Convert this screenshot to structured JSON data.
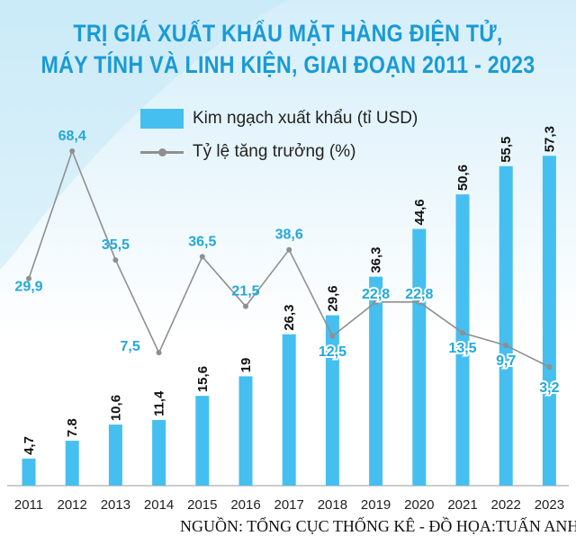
{
  "chart_data": {
    "type": "bar",
    "title_line1": "TRỊ GIÁ XUẤT KHẨU MẶT HÀNG ĐIỆN TỬ,",
    "title_line2": "MÁY TÍNH VÀ LINH KIỆN, GIAI ĐOẠN 2011 - 2023",
    "categories": [
      "2011",
      "2012",
      "2013",
      "2014",
      "2015",
      "2016",
      "2017",
      "2018",
      "2019",
      "2020",
      "2021",
      "2022",
      "2023"
    ],
    "series": [
      {
        "name": "Kim ngạch xuất khẩu (tỉ USD)",
        "kind": "bar",
        "values": [
          4.7,
          7.8,
          10.6,
          11.4,
          15.6,
          19,
          26.3,
          29.6,
          36.3,
          44.6,
          50.6,
          55.5,
          57.3
        ],
        "labels": [
          "4,7",
          "7.8",
          "10,6",
          "11,4",
          "15,6",
          "19",
          "26,3",
          "29,6",
          "36,3",
          "44,6",
          "50,6",
          "55,5",
          "57,3"
        ]
      },
      {
        "name": "Tỷ lệ tăng trưởng (%)",
        "kind": "line",
        "values": [
          29.9,
          68.4,
          35.5,
          7.5,
          36.5,
          21.5,
          38.6,
          12.5,
          22.8,
          22.8,
          13.5,
          9.7,
          3.2
        ],
        "labels": [
          "29,9",
          "68,4",
          "35,5",
          "7,5",
          "36,5",
          "21,5",
          "38,6",
          "12,5",
          "22,8",
          "22,8",
          "13,5",
          "9,7",
          "3,2"
        ]
      }
    ],
    "colors": {
      "bar": "#45bff0",
      "line": "#8f8f8f",
      "line_label": "#22a8dc",
      "bar_label": "#111111",
      "title": "#1a9ad6"
    }
  },
  "source": "NGUỒN: TỔNG CỤC THỐNG KÊ - ĐỒ HỌA:TUẤN ANH"
}
